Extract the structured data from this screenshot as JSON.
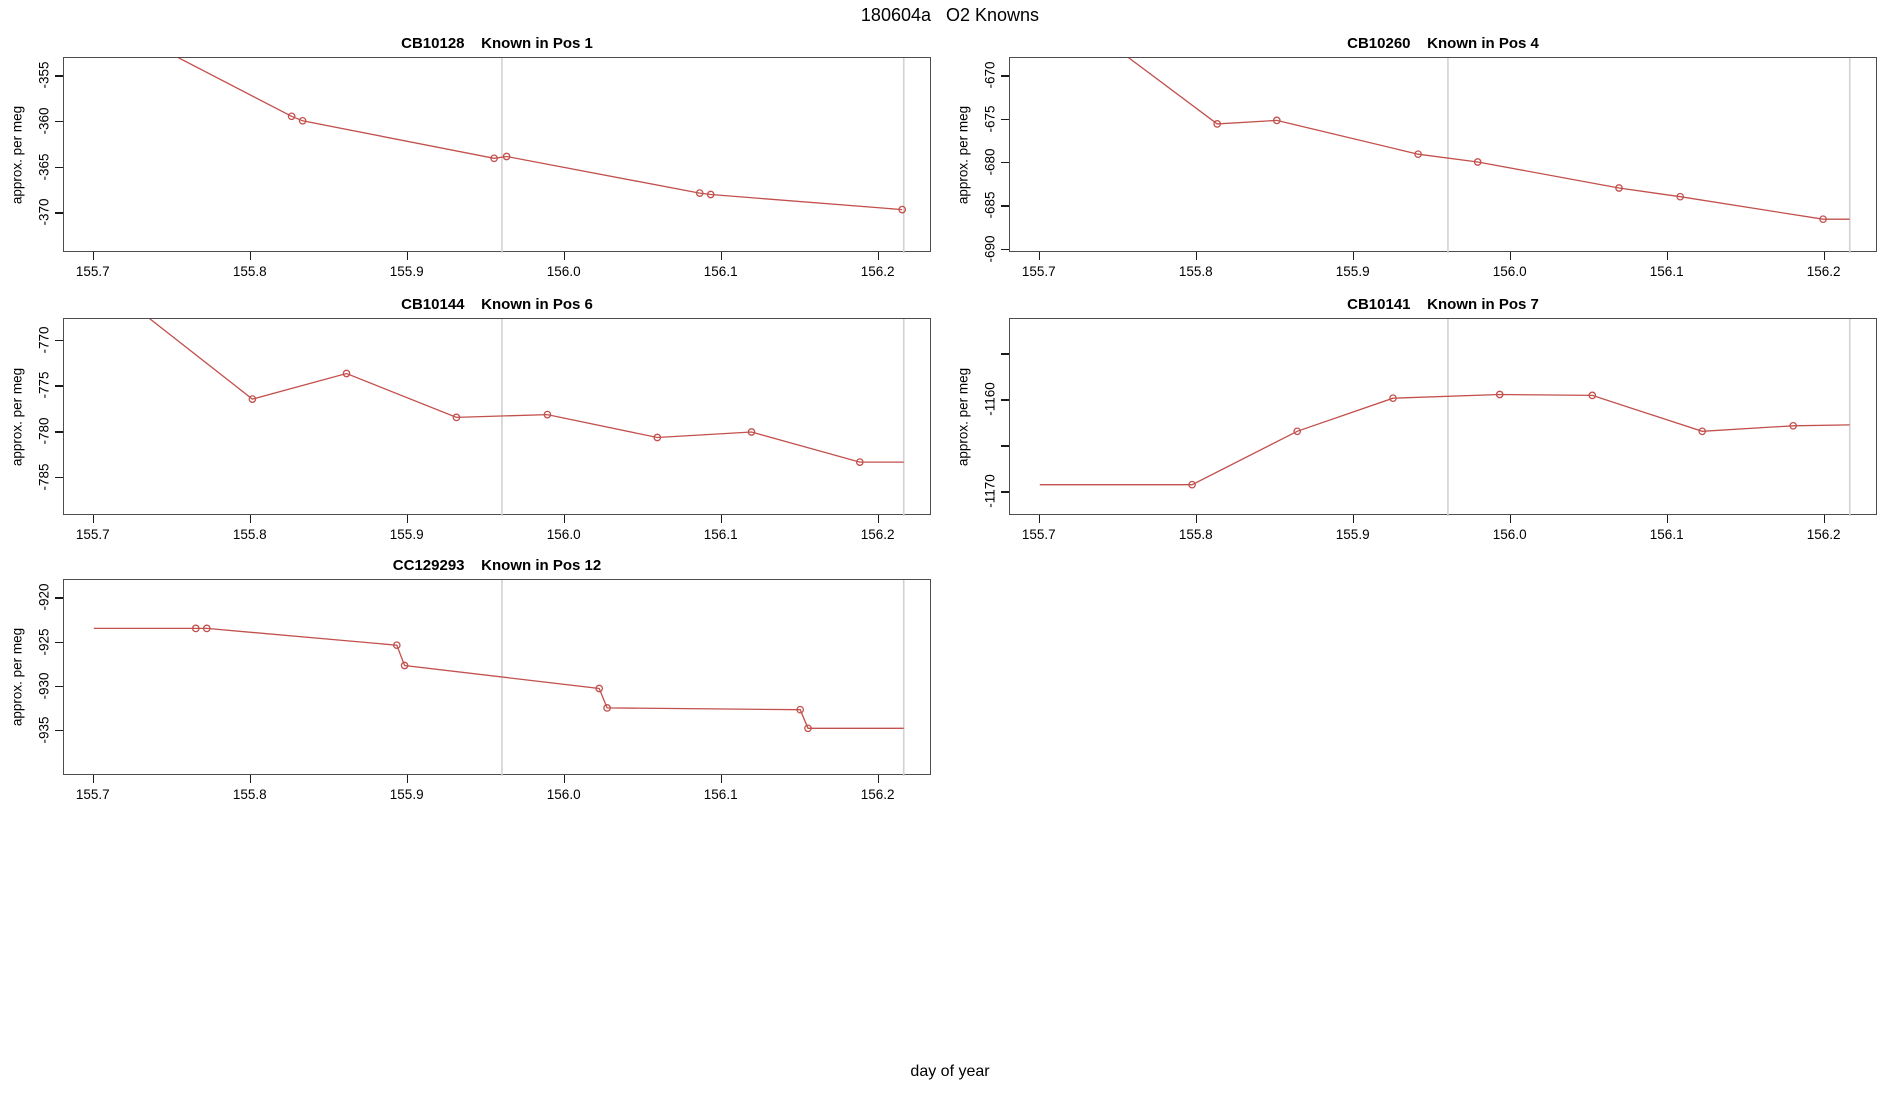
{
  "figure": {
    "title": "180604a   O2 Knowns",
    "xlabel": "day of year"
  },
  "colors": {
    "series": "#c2504c",
    "vline": "#d2d2d2",
    "box_border": "#4d4d4d",
    "tick": "#1a1a1a",
    "text": "#000000"
  },
  "chart_data": [
    {
      "type": "line",
      "id": "CB10128",
      "pos": "Known in Pos 1",
      "title": "CB10128    Known in Pos 1",
      "ylabel": "approx. per meg",
      "grid": "off",
      "xlim": [
        155.681,
        156.234
      ],
      "ylim": [
        -374.35,
        -353.03
      ],
      "xticks": [
        {
          "v": 155.7,
          "label": "155.7"
        },
        {
          "v": 155.8,
          "label": "155.8"
        },
        {
          "v": 155.9,
          "label": "155.9"
        },
        {
          "v": 156.0,
          "label": "156.0"
        },
        {
          "v": 156.1,
          "label": "156.1"
        },
        {
          "v": 156.2,
          "label": "156.2"
        }
      ],
      "yticks": [
        {
          "v": -355,
          "label": "-355"
        },
        {
          "v": -360,
          "label": "-360"
        },
        {
          "v": -365,
          "label": "-365"
        },
        {
          "v": -370,
          "label": "-370"
        }
      ],
      "vlines": [
        155.96,
        156.216
      ],
      "line": [
        [
          155.737,
          -351.5
        ],
        [
          155.826,
          -359.4
        ],
        [
          155.833,
          -359.9
        ],
        [
          155.955,
          -364.0
        ],
        [
          155.963,
          -363.8
        ],
        [
          156.086,
          -367.8
        ],
        [
          156.093,
          -367.95
        ],
        [
          156.215,
          -369.6
        ]
      ],
      "markers": [
        [
          155.826,
          -359.4
        ],
        [
          155.833,
          -359.9
        ],
        [
          155.955,
          -364.0
        ],
        [
          155.963,
          -363.8
        ],
        [
          156.086,
          -367.8
        ],
        [
          156.093,
          -367.95
        ],
        [
          156.215,
          -369.6
        ]
      ]
    },
    {
      "type": "line",
      "id": "CB10260",
      "pos": "Known in Pos 4",
      "title": "CB10260    Known in Pos 4",
      "ylabel": "approx. per meg",
      "grid": "off",
      "xlim": [
        155.681,
        156.234
      ],
      "ylim": [
        -690.4,
        -667.9
      ],
      "xticks": [
        {
          "v": 155.7,
          "label": "155.7"
        },
        {
          "v": 155.8,
          "label": "155.8"
        },
        {
          "v": 155.9,
          "label": "155.9"
        },
        {
          "v": 156.0,
          "label": "156.0"
        },
        {
          "v": 156.1,
          "label": "156.1"
        },
        {
          "v": 156.2,
          "label": "156.2"
        }
      ],
      "yticks": [
        {
          "v": -670,
          "label": "-670"
        },
        {
          "v": -675,
          "label": "-675"
        },
        {
          "v": -680,
          "label": "-680"
        },
        {
          "v": -685,
          "label": "-685"
        },
        {
          "v": -690,
          "label": "-690"
        }
      ],
      "vlines": [
        155.96,
        156.216
      ],
      "line": [
        [
          155.728,
          -664.0
        ],
        [
          155.813,
          -675.5
        ],
        [
          155.851,
          -675.1
        ],
        [
          155.941,
          -679.0
        ],
        [
          155.979,
          -679.9
        ],
        [
          156.069,
          -682.9
        ],
        [
          156.108,
          -683.9
        ],
        [
          156.199,
          -686.5
        ],
        [
          156.216,
          -686.5
        ]
      ],
      "markers": [
        [
          155.813,
          -675.5
        ],
        [
          155.851,
          -675.1
        ],
        [
          155.941,
          -679.0
        ],
        [
          155.979,
          -679.9
        ],
        [
          156.069,
          -682.9
        ],
        [
          156.108,
          -683.9
        ],
        [
          156.199,
          -686.5
        ]
      ]
    },
    {
      "type": "line",
      "id": "CB10144",
      "pos": "Known in Pos 6",
      "title": "CB10144    Known in Pos 6",
      "ylabel": "approx. per meg",
      "grid": "off",
      "xlim": [
        155.681,
        156.234
      ],
      "ylim": [
        -789.2,
        -767.63
      ],
      "xticks": [
        {
          "v": 155.7,
          "label": "155.7"
        },
        {
          "v": 155.8,
          "label": "155.8"
        },
        {
          "v": 155.9,
          "label": "155.9"
        },
        {
          "v": 156.0,
          "label": "156.0"
        },
        {
          "v": 156.1,
          "label": "156.1"
        },
        {
          "v": 156.2,
          "label": "156.2"
        }
      ],
      "yticks": [
        {
          "v": -770,
          "label": "-770"
        },
        {
          "v": -775,
          "label": "-775"
        },
        {
          "v": -780,
          "label": "-780"
        },
        {
          "v": -785,
          "label": "-785"
        }
      ],
      "vlines": [
        155.96,
        156.216
      ],
      "line": [
        [
          155.72,
          -765.5
        ],
        [
          155.801,
          -776.4
        ],
        [
          155.861,
          -773.6
        ],
        [
          155.931,
          -778.4
        ],
        [
          155.989,
          -778.1
        ],
        [
          156.059,
          -780.6
        ],
        [
          156.119,
          -780.0
        ],
        [
          156.188,
          -783.3
        ],
        [
          156.216,
          -783.3
        ]
      ],
      "markers": [
        [
          155.801,
          -776.4
        ],
        [
          155.861,
          -773.6
        ],
        [
          155.931,
          -778.4
        ],
        [
          155.989,
          -778.1
        ],
        [
          156.059,
          -780.6
        ],
        [
          156.119,
          -780.0
        ],
        [
          156.188,
          -783.3
        ]
      ]
    },
    {
      "type": "line",
      "id": "CB10141",
      "pos": "Known in Pos 7",
      "title": "CB10141    Known in Pos 7",
      "ylabel": "approx. per meg",
      "grid": "off",
      "xlim": [
        155.681,
        156.234
      ],
      "ylim": [
        -1172.6,
        -1151.2
      ],
      "xticks": [
        {
          "v": 155.7,
          "label": "155.7"
        },
        {
          "v": 155.8,
          "label": "155.8"
        },
        {
          "v": 155.9,
          "label": "155.9"
        },
        {
          "v": 156.0,
          "label": "156.0"
        },
        {
          "v": 156.1,
          "label": "156.1"
        },
        {
          "v": 156.2,
          "label": "156.2"
        }
      ],
      "yticks": [
        {
          "v": -1155,
          "label": ""
        },
        {
          "v": -1160,
          "label": "-1160"
        },
        {
          "v": -1165,
          "label": ""
        },
        {
          "v": -1170,
          "label": "-1170"
        }
      ],
      "vlines": [
        155.96,
        156.216
      ],
      "line": [
        [
          155.7,
          -1169.2
        ],
        [
          155.797,
          -1169.2
        ],
        [
          155.864,
          -1163.4
        ],
        [
          155.925,
          -1159.8
        ],
        [
          155.993,
          -1159.4
        ],
        [
          156.052,
          -1159.5
        ],
        [
          156.122,
          -1163.4
        ],
        [
          156.18,
          -1162.8
        ],
        [
          156.216,
          -1162.7
        ]
      ],
      "markers": [
        [
          155.797,
          -1169.2
        ],
        [
          155.864,
          -1163.4
        ],
        [
          155.925,
          -1159.8
        ],
        [
          155.993,
          -1159.4
        ],
        [
          156.052,
          -1159.5
        ],
        [
          156.122,
          -1163.4
        ],
        [
          156.18,
          -1162.8
        ]
      ]
    },
    {
      "type": "line",
      "id": "CC129293",
      "pos": "Known in Pos 12",
      "title": "CC129293    Known in Pos 12",
      "ylabel": "approx. per meg",
      "grid": "off",
      "xlim": [
        155.681,
        156.234
      ],
      "ylim": [
        -940.1,
        -917.93
      ],
      "xticks": [
        {
          "v": 155.7,
          "label": "155.7"
        },
        {
          "v": 155.8,
          "label": "155.8"
        },
        {
          "v": 155.9,
          "label": "155.9"
        },
        {
          "v": 156.0,
          "label": "156.0"
        },
        {
          "v": 156.1,
          "label": "156.1"
        },
        {
          "v": 156.2,
          "label": "156.2"
        }
      ],
      "yticks": [
        {
          "v": -920,
          "label": "-920"
        },
        {
          "v": -925,
          "label": "-925"
        },
        {
          "v": -930,
          "label": "-930"
        },
        {
          "v": -935,
          "label": "-935"
        }
      ],
      "vlines": [
        155.96,
        156.216
      ],
      "line": [
        [
          155.7,
          -923.4
        ],
        [
          155.765,
          -923.4
        ],
        [
          155.772,
          -923.4
        ],
        [
          155.893,
          -925.3
        ],
        [
          155.898,
          -927.6
        ],
        [
          156.022,
          -930.2
        ],
        [
          156.027,
          -932.4
        ],
        [
          156.15,
          -932.6
        ],
        [
          156.155,
          -934.7
        ],
        [
          156.216,
          -934.7
        ]
      ],
      "markers": [
        [
          155.765,
          -923.4
        ],
        [
          155.772,
          -923.4
        ],
        [
          155.893,
          -925.3
        ],
        [
          155.898,
          -927.6
        ],
        [
          156.022,
          -930.2
        ],
        [
          156.027,
          -932.4
        ],
        [
          156.15,
          -932.6
        ],
        [
          156.155,
          -934.7
        ]
      ]
    }
  ]
}
